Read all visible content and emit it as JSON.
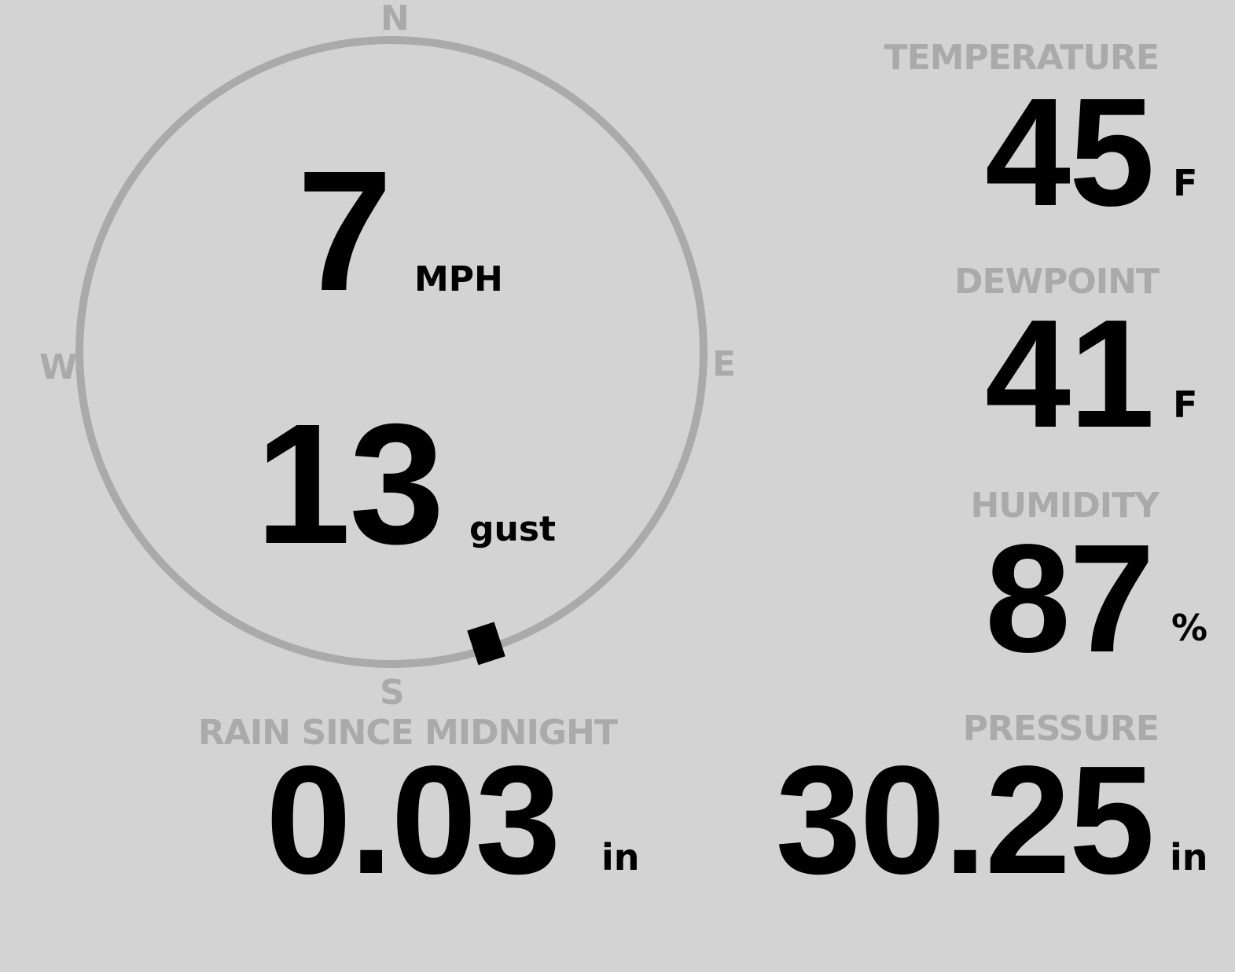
{
  "wind": {
    "speed": "7",
    "speed_unit": "MPH",
    "gust": "13",
    "gust_unit": "gust",
    "direction_degrees": 162,
    "cardinals": {
      "n": "N",
      "e": "E",
      "s": "S",
      "w": "W"
    }
  },
  "temperature": {
    "label": "TEMPERATURE",
    "value": "45",
    "unit": "F"
  },
  "dewpoint": {
    "label": "DEWPOINT",
    "value": "41",
    "unit": "F"
  },
  "humidity": {
    "label": "HUMIDITY",
    "value": "87",
    "unit": "%"
  },
  "rain": {
    "label": "RAIN SINCE MIDNIGHT",
    "value": "0.03",
    "unit": "in"
  },
  "pressure": {
    "label": "PRESSURE",
    "value": "30.25",
    "unit": "in"
  },
  "colors": {
    "background": "#d3d3d3",
    "label": "#aaaaaa",
    "value": "#000000",
    "dial": "#aaaaaa"
  }
}
